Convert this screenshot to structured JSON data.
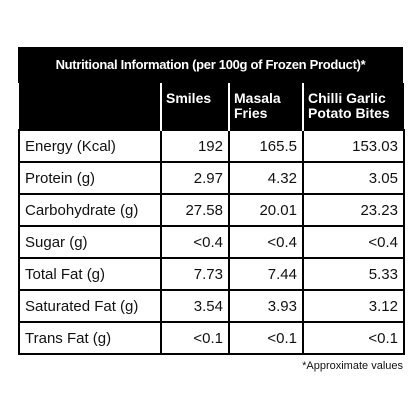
{
  "title": "Nutritional Information (per 100g of Frozen Product)*",
  "table": {
    "columns": [
      "Smiles",
      "Masala Fries",
      "Chilli Garlic Potato Bites"
    ],
    "rows": [
      [
        "Energy (Kcal)",
        "192",
        "165.5",
        "153.03"
      ],
      [
        "Protein (g)",
        "2.97",
        "4.32",
        "3.05"
      ],
      [
        "Carbohydrate (g)",
        "27.58",
        "20.01",
        "23.23"
      ],
      [
        "Sugar (g)",
        "<0.4",
        "<0.4",
        "<0.4"
      ],
      [
        "Total Fat (g)",
        "7.73",
        "7.44",
        "5.33"
      ],
      [
        "Saturated Fat (g)",
        "3.54",
        "3.93",
        "3.12"
      ],
      [
        "Trans Fat (g)",
        "<0.1",
        "<0.1",
        "<0.1"
      ]
    ]
  },
  "footnote": "*Approximate values"
}
